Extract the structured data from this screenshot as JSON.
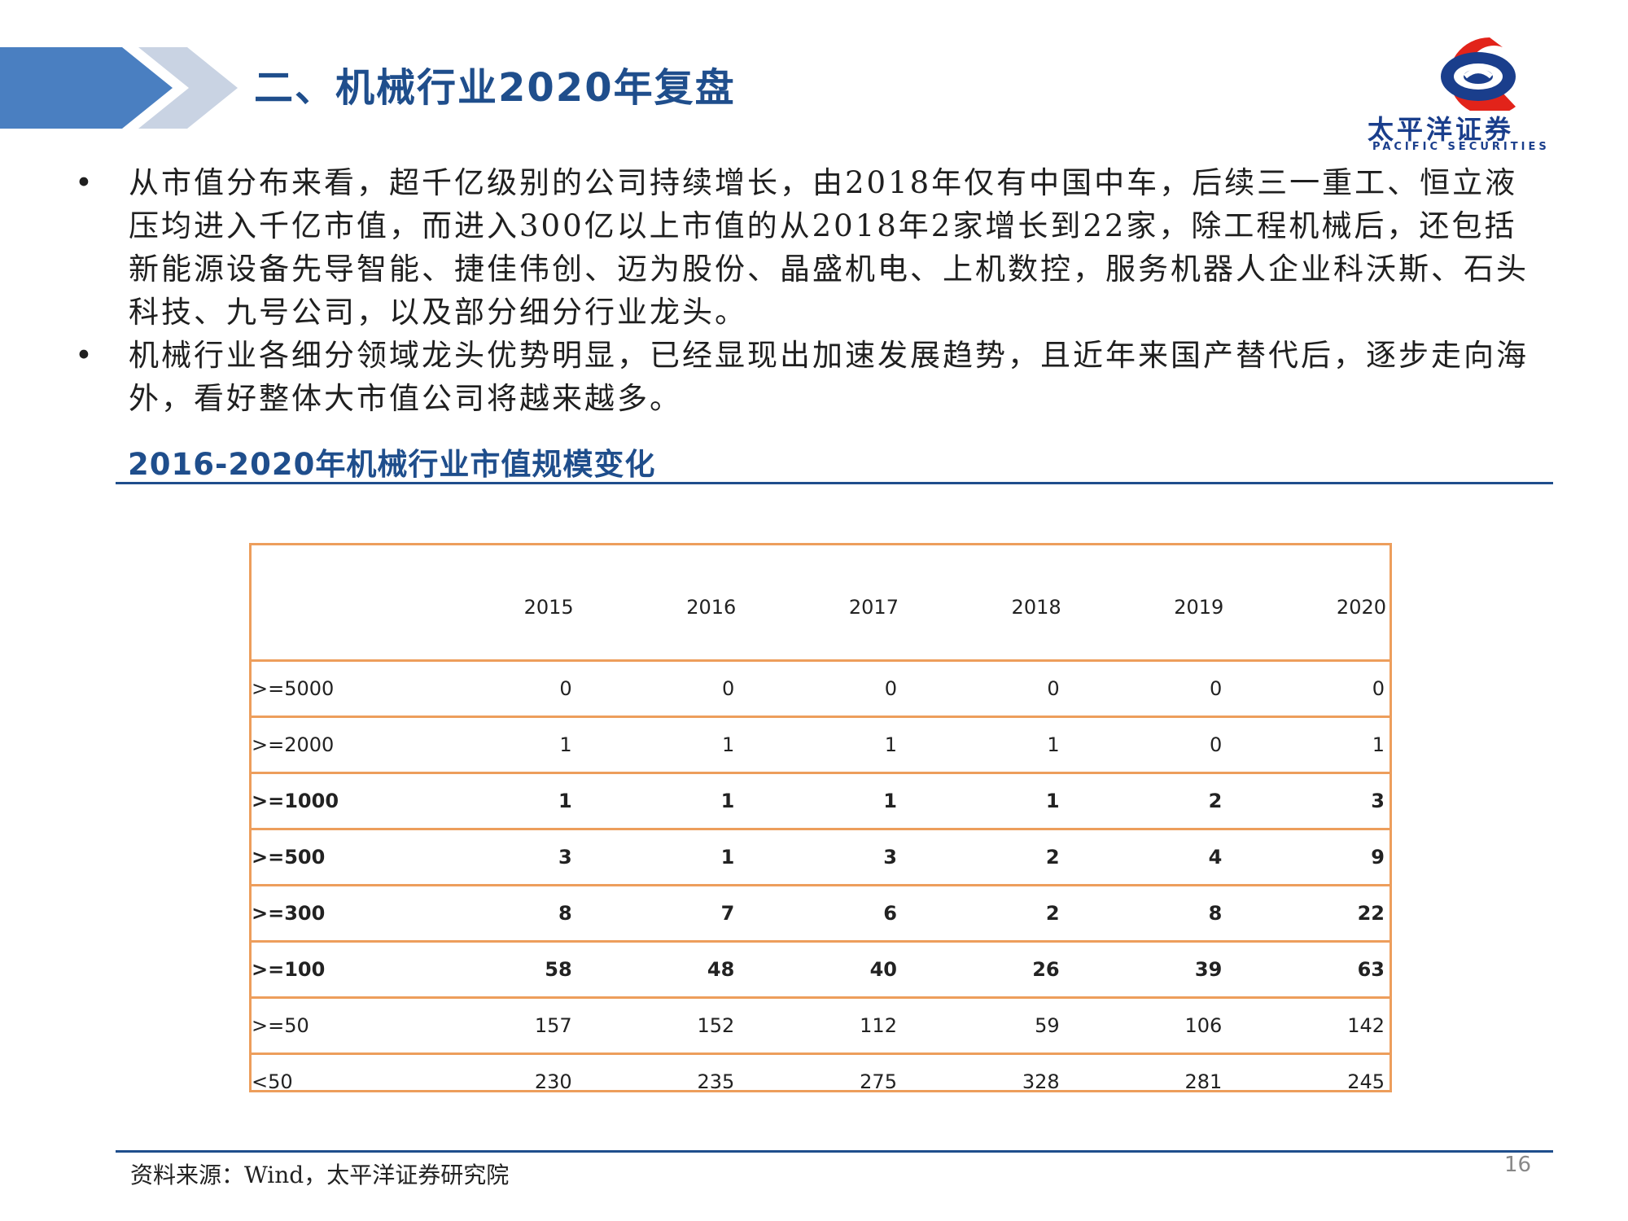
{
  "header": {
    "title": "二、机械行业2020年复盘",
    "logo": {
      "name_cn": "太平洋证券",
      "name_en": "PACIFIC SECURITIES"
    }
  },
  "bullets": [
    {
      "text": "从市值分布来看，超千亿级别的公司持续增长，由2018年仅有中国中车，后续三一重工、恒立液压均进入千亿市值，而进入300亿以上市值的从2018年2家增长到22家，除工程机械后，还包括新能源设备先导智能、捷佳伟创、迈为股份、晶盛机电、上机数控，服务机器人企业科沃斯、石头科技、九号公司，以及部分细分行业龙头。"
    },
    {
      "text": "机械行业各细分领域龙头优势明显，已经显现出加速发展趋势，且近年来国产替代后，逐步走向海外，看好整体大市值公司将越来越多。"
    }
  ],
  "bullet_marker": "•",
  "section": {
    "title": "2016-2020年机械行业市值规模变化"
  },
  "table": {
    "corner": "",
    "columns": [
      "2015",
      "2016",
      "2017",
      "2018",
      "2019",
      "2020"
    ],
    "rows": [
      {
        "label": ">=5000",
        "values": [
          "0",
          "0",
          "0",
          "0",
          "0",
          "0"
        ],
        "bold": false
      },
      {
        "label": ">=2000",
        "values": [
          "1",
          "1",
          "1",
          "1",
          "0",
          "1"
        ],
        "bold": false
      },
      {
        "label": ">=1000",
        "values": [
          "1",
          "1",
          "1",
          "1",
          "2",
          "3"
        ],
        "bold": true
      },
      {
        "label": ">=500",
        "values": [
          "3",
          "1",
          "3",
          "2",
          "4",
          "9"
        ],
        "bold": true
      },
      {
        "label": ">=300",
        "values": [
          "8",
          "7",
          "6",
          "2",
          "8",
          "22"
        ],
        "bold": true
      },
      {
        "label": ">=100",
        "values": [
          "58",
          "48",
          "40",
          "26",
          "39",
          "63"
        ],
        "bold": true
      },
      {
        "label": ">=50",
        "values": [
          "157",
          "152",
          "112",
          "59",
          "106",
          "142"
        ],
        "bold": false
      },
      {
        "label": "<50",
        "values": [
          "230",
          "235",
          "275",
          "328",
          "281",
          "245"
        ],
        "bold": false
      }
    ]
  },
  "footer": {
    "source": "资料来源：Wind，太平洋证券研究院",
    "page_number": "16"
  },
  "colors": {
    "title_blue": "#1f4e8c",
    "chevron_dark": "#4a7fc1",
    "chevron_light": "#c9d3e3",
    "table_border": "#ed9e5c",
    "logo_red": "#e2231a",
    "logo_blue": "#1a3e8c"
  }
}
